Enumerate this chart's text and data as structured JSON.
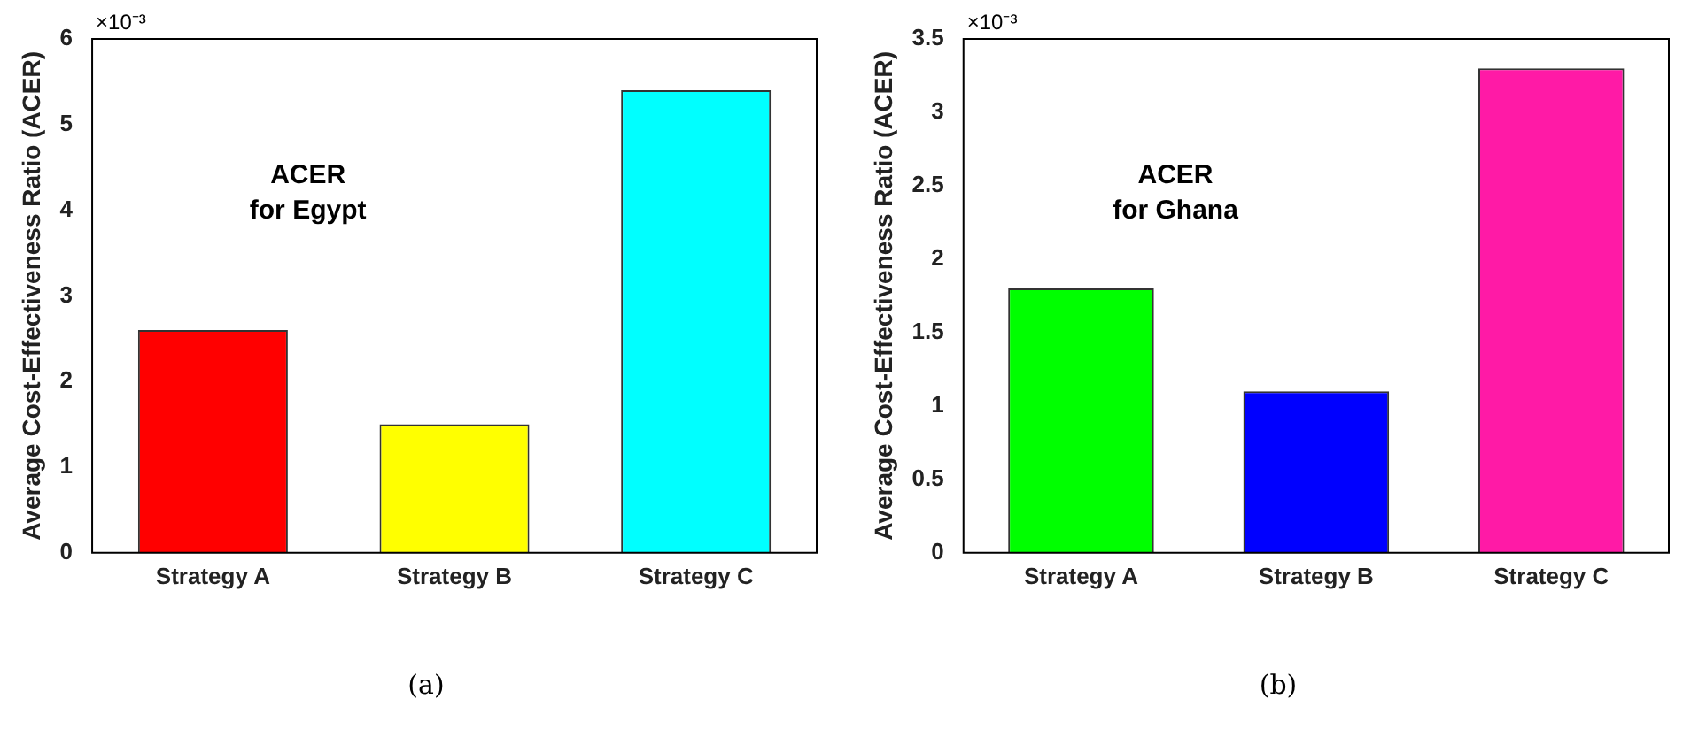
{
  "chart_data": [
    {
      "type": "bar",
      "ylabel": "Average Cost-Effectiveness Ratio (ACER)",
      "categories": [
        "Strategy A",
        "Strategy B",
        "Strategy C"
      ],
      "values": [
        2.6,
        1.5,
        5.4
      ],
      "colors": [
        "#ff0000",
        "#ffff00",
        "#00ffff"
      ],
      "ylim": [
        0,
        6
      ],
      "yticks": [
        0,
        1,
        2,
        3,
        4,
        5,
        6
      ],
      "grid": false,
      "legend": false,
      "annotations": [
        "×10⁻³",
        "ACER\nfor Egypt",
        "(a)"
      ]
    },
    {
      "type": "bar",
      "ylabel": "Average Cost-Effectiveness Ratio (ACER)",
      "categories": [
        "Strategy A",
        "Strategy B",
        "Strategy C"
      ],
      "values": [
        1.8,
        1.1,
        3.3
      ],
      "colors": [
        "#00ff00",
        "#0000ff",
        "#ff1aa6"
      ],
      "ylim": [
        0,
        3.5
      ],
      "yticks": [
        0,
        0.5,
        1,
        1.5,
        2,
        2.5,
        3,
        3.5
      ],
      "grid": false,
      "legend": false,
      "annotations": [
        "×10⁻³",
        "ACER\nfor Ghana",
        "(b)"
      ]
    }
  ]
}
